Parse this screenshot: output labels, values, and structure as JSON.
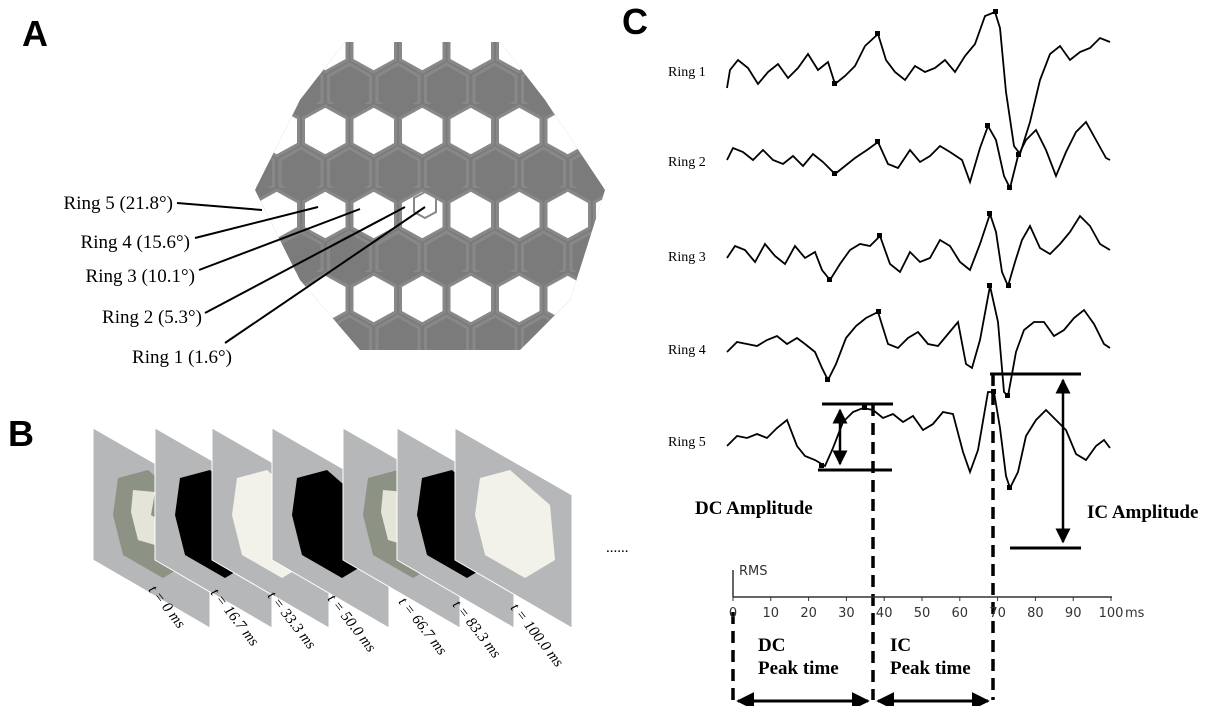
{
  "panels": {
    "a": {
      "label": "A",
      "rings": [
        "Ring 5 (21.8°)",
        "Ring 4 (15.6°)",
        "Ring 3 (10.1°)",
        "Ring 2 (5.3°)",
        "Ring 1 (1.6°)"
      ]
    },
    "b": {
      "label": "B",
      "frames": [
        "t = 0 ms",
        "t = 16.7 ms",
        "t = 33.3 ms",
        "t = 50.0 ms",
        "t = 66.7 ms",
        "t = 83.3 ms",
        "t = 100.0 ms"
      ],
      "more": "......"
    },
    "c": {
      "label": "C",
      "traces": [
        "Ring 1",
        "Ring 2",
        "Ring 3",
        "Ring 4",
        "Ring 5"
      ],
      "dc_amplitude": "DC Amplitude",
      "ic_amplitude": "IC Amplitude",
      "axis": {
        "label": "RMS",
        "ticks": [
          0,
          10,
          20,
          30,
          40,
          50,
          60,
          70,
          80,
          90,
          100
        ],
        "unit": "ms"
      },
      "dc_peak_time": [
        "DC",
        "Peak time"
      ],
      "ic_peak_time": [
        "IC",
        "Peak time"
      ]
    }
  }
}
